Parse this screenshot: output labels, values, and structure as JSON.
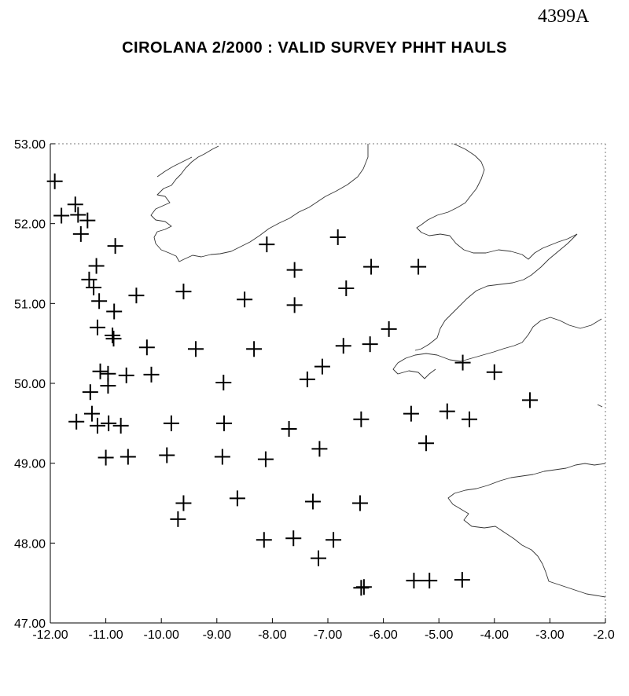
{
  "document_id": "4399A",
  "title": "CIROLANA 2/2000 : VALID SURVEY PHHT HAULS",
  "chart_data": {
    "type": "scatter",
    "title": "CIROLANA 2/2000 : VALID SURVEY PHHT HAULS",
    "xlabel": "",
    "ylabel": "",
    "xlim": [
      -12.0,
      -2.0
    ],
    "ylim": [
      47.0,
      53.0
    ],
    "x_ticks": [
      "-12.00",
      "-11.00",
      "-10.00",
      "-9.00",
      "-8.00",
      "-7.00",
      "-6.00",
      "-5.00",
      "-4.00",
      "-3.00",
      "-2.0"
    ],
    "y_ticks": [
      "53.00",
      "52.00",
      "51.00",
      "50.00",
      "49.00",
      "48.00",
      "47.00"
    ],
    "grid": false,
    "marker": "plus",
    "series": [
      {
        "points": [
          [
            -11.92,
            52.53
          ],
          [
            -11.8,
            52.1
          ],
          [
            -11.55,
            52.24
          ],
          [
            -11.5,
            52.11
          ],
          [
            -11.33,
            52.04
          ],
          [
            -11.45,
            51.87
          ],
          [
            -10.83,
            51.72
          ],
          [
            -11.17,
            51.47
          ],
          [
            -11.3,
            51.3
          ],
          [
            -11.22,
            51.2
          ],
          [
            -11.12,
            51.03
          ],
          [
            -10.85,
            50.9
          ],
          [
            -11.15,
            50.7
          ],
          [
            -10.88,
            50.6
          ],
          [
            -10.86,
            50.56
          ],
          [
            -10.45,
            51.1
          ],
          [
            -9.6,
            51.15
          ],
          [
            -8.5,
            51.05
          ],
          [
            -8.1,
            51.74
          ],
          [
            -7.6,
            51.42
          ],
          [
            -7.6,
            50.98
          ],
          [
            -6.82,
            51.83
          ],
          [
            -6.67,
            51.19
          ],
          [
            -6.22,
            51.46
          ],
          [
            -5.37,
            51.46
          ],
          [
            -10.26,
            50.45
          ],
          [
            -9.38,
            50.43
          ],
          [
            -8.33,
            50.43
          ],
          [
            -6.72,
            50.47
          ],
          [
            -6.24,
            50.49
          ],
          [
            -5.9,
            50.68
          ],
          [
            -7.1,
            50.21
          ],
          [
            -7.37,
            50.05
          ],
          [
            -8.88,
            50.01
          ],
          [
            -11.1,
            50.15
          ],
          [
            -10.96,
            50.12
          ],
          [
            -10.63,
            50.1
          ],
          [
            -10.18,
            50.11
          ],
          [
            -11.28,
            49.89
          ],
          [
            -10.96,
            49.97
          ],
          [
            -11.53,
            49.52
          ],
          [
            -11.25,
            49.62
          ],
          [
            -11.15,
            49.47
          ],
          [
            -10.95,
            49.5
          ],
          [
            -10.73,
            49.47
          ],
          [
            -9.82,
            49.5
          ],
          [
            -8.87,
            49.5
          ],
          [
            -7.7,
            49.43
          ],
          [
            -7.15,
            49.18
          ],
          [
            -6.4,
            49.55
          ],
          [
            -5.5,
            49.62
          ],
          [
            -4.85,
            49.65
          ],
          [
            -4.45,
            49.55
          ],
          [
            -5.23,
            49.25
          ],
          [
            -4.57,
            50.26
          ],
          [
            -4.0,
            50.14
          ],
          [
            -3.36,
            49.79
          ],
          [
            -11.0,
            49.07
          ],
          [
            -10.6,
            49.08
          ],
          [
            -9.9,
            49.1
          ],
          [
            -8.9,
            49.08
          ],
          [
            -8.12,
            49.05
          ],
          [
            -9.6,
            48.5
          ],
          [
            -9.7,
            48.3
          ],
          [
            -8.63,
            48.56
          ],
          [
            -7.27,
            48.52
          ],
          [
            -6.42,
            48.5
          ],
          [
            -8.15,
            48.04
          ],
          [
            -7.62,
            48.06
          ],
          [
            -6.9,
            48.04
          ],
          [
            -7.17,
            47.81
          ],
          [
            -6.4,
            47.44
          ],
          [
            -6.35,
            47.45
          ],
          [
            -5.45,
            47.53
          ],
          [
            -5.17,
            47.53
          ],
          [
            -4.58,
            47.54
          ]
        ]
      }
    ]
  },
  "coastline_features": [
    "ireland-coast",
    "wales-coast",
    "cornwall-coast",
    "brittany-coast"
  ]
}
